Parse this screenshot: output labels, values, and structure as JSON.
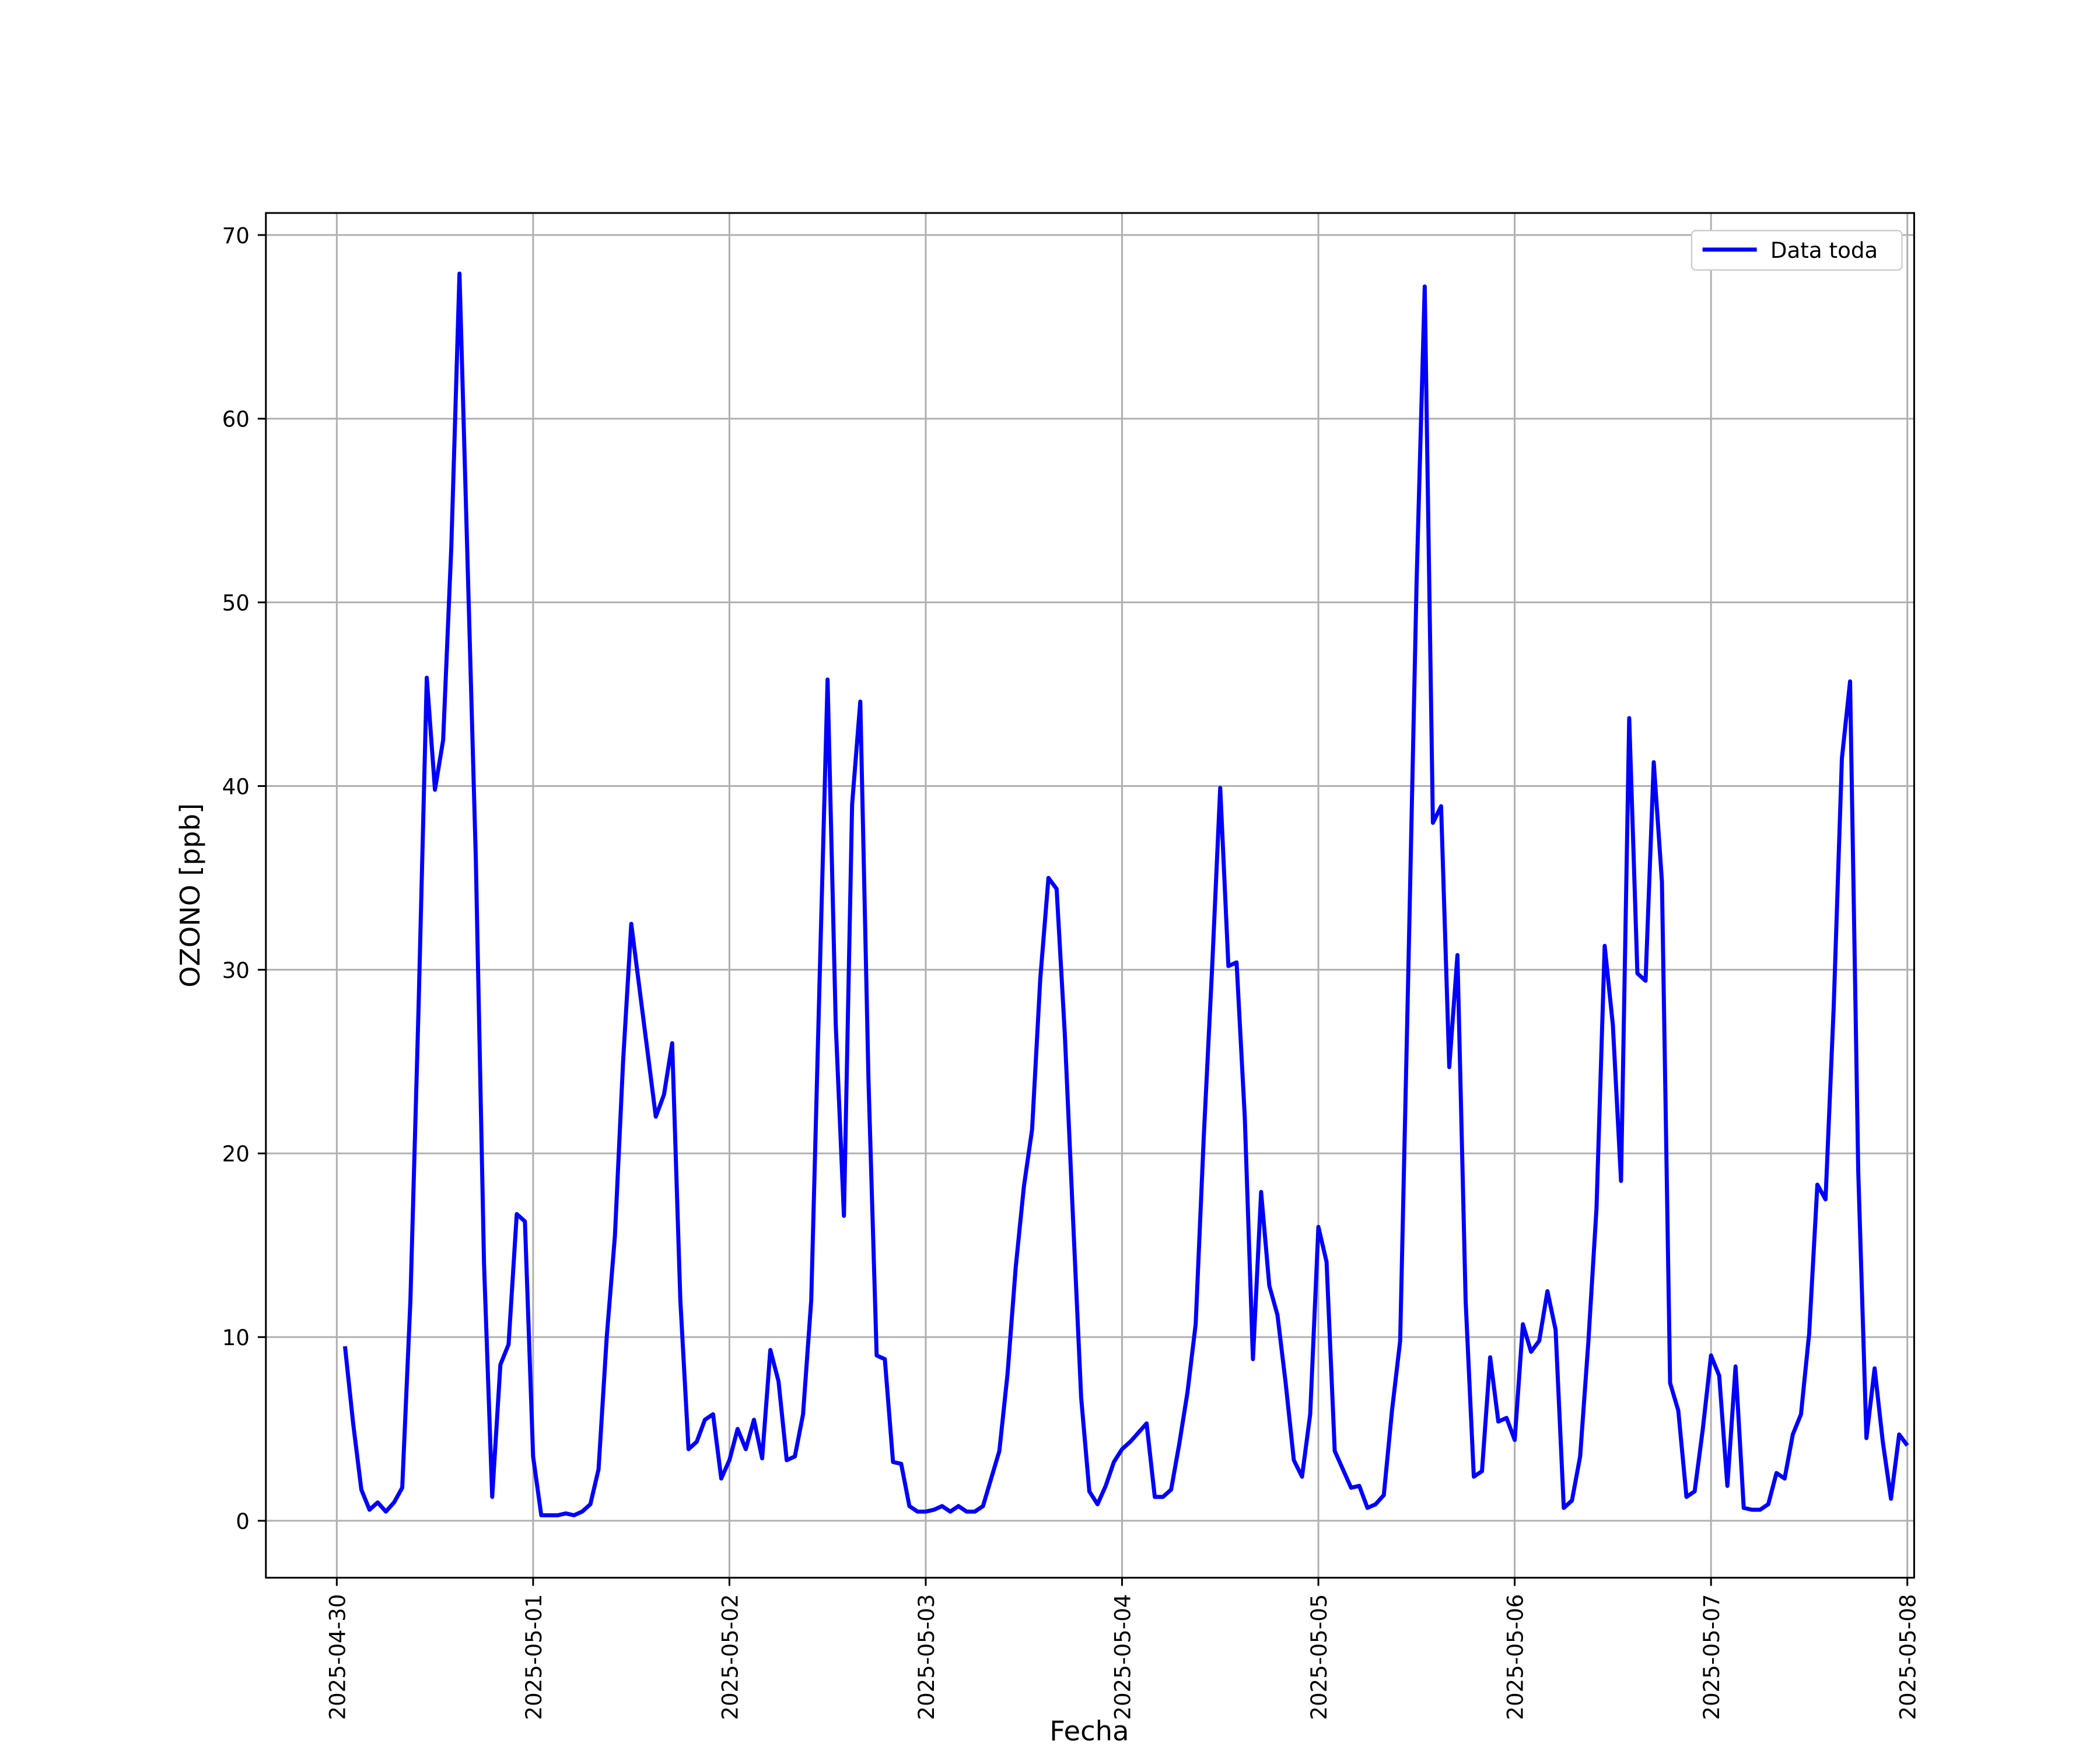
{
  "chart_data": {
    "type": "line",
    "x_label": "Fecha",
    "y_label": "OZONO [ppb]",
    "x": [
      "2025-04-30T01:00",
      "2025-04-30T02:00",
      "2025-04-30T03:00",
      "2025-04-30T04:00",
      "2025-04-30T05:00",
      "2025-04-30T06:00",
      "2025-04-30T07:00",
      "2025-04-30T08:00",
      "2025-04-30T09:00",
      "2025-04-30T10:00",
      "2025-04-30T11:00",
      "2025-04-30T12:00",
      "2025-04-30T13:00",
      "2025-04-30T14:00",
      "2025-04-30T15:00",
      "2025-04-30T16:00",
      "2025-04-30T17:00",
      "2025-04-30T18:00",
      "2025-04-30T19:00",
      "2025-04-30T20:00",
      "2025-04-30T21:00",
      "2025-04-30T22:00",
      "2025-04-30T23:00",
      "2025-05-01T00:00",
      "2025-05-01T01:00",
      "2025-05-01T02:00",
      "2025-05-01T03:00",
      "2025-05-01T04:00",
      "2025-05-01T05:00",
      "2025-05-01T06:00",
      "2025-05-01T07:00",
      "2025-05-01T08:00",
      "2025-05-01T09:00",
      "2025-05-01T10:00",
      "2025-05-01T11:00",
      "2025-05-01T12:00",
      "2025-05-01T13:00",
      "2025-05-01T14:00",
      "2025-05-01T15:00",
      "2025-05-01T16:00",
      "2025-05-01T17:00",
      "2025-05-01T18:00",
      "2025-05-01T19:00",
      "2025-05-01T20:00",
      "2025-05-01T21:00",
      "2025-05-01T22:00",
      "2025-05-01T23:00",
      "2025-05-02T00:00",
      "2025-05-02T01:00",
      "2025-05-02T02:00",
      "2025-05-02T03:00",
      "2025-05-02T04:00",
      "2025-05-02T05:00",
      "2025-05-02T06:00",
      "2025-05-02T07:00",
      "2025-05-02T08:00",
      "2025-05-02T09:00",
      "2025-05-02T10:00",
      "2025-05-02T11:00",
      "2025-05-02T12:00",
      "2025-05-02T13:00",
      "2025-05-02T14:00",
      "2025-05-02T15:00",
      "2025-05-02T16:00",
      "2025-05-02T17:00",
      "2025-05-02T18:00",
      "2025-05-02T19:00",
      "2025-05-02T20:00",
      "2025-05-02T21:00",
      "2025-05-02T22:00",
      "2025-05-02T23:00",
      "2025-05-03T00:00",
      "2025-05-03T01:00",
      "2025-05-03T02:00",
      "2025-05-03T03:00",
      "2025-05-03T04:00",
      "2025-05-03T05:00",
      "2025-05-03T06:00",
      "2025-05-03T07:00",
      "2025-05-03T08:00",
      "2025-05-03T09:00",
      "2025-05-03T10:00",
      "2025-05-03T11:00",
      "2025-05-03T12:00",
      "2025-05-03T13:00",
      "2025-05-03T14:00",
      "2025-05-03T15:00",
      "2025-05-03T16:00",
      "2025-05-03T17:00",
      "2025-05-03T18:00",
      "2025-05-03T19:00",
      "2025-05-03T20:00",
      "2025-05-03T21:00",
      "2025-05-03T22:00",
      "2025-05-03T23:00",
      "2025-05-04T00:00",
      "2025-05-04T01:00",
      "2025-05-04T02:00",
      "2025-05-04T03:00",
      "2025-05-04T04:00",
      "2025-05-04T05:00",
      "2025-05-04T06:00",
      "2025-05-04T07:00",
      "2025-05-04T08:00",
      "2025-05-04T09:00",
      "2025-05-04T10:00",
      "2025-05-04T11:00",
      "2025-05-04T12:00",
      "2025-05-04T13:00",
      "2025-05-04T14:00",
      "2025-05-04T15:00",
      "2025-05-04T16:00",
      "2025-05-04T17:00",
      "2025-05-04T18:00",
      "2025-05-04T19:00",
      "2025-05-04T20:00",
      "2025-05-04T21:00",
      "2025-05-04T22:00",
      "2025-05-04T23:00",
      "2025-05-05T00:00",
      "2025-05-05T01:00",
      "2025-05-05T02:00",
      "2025-05-05T03:00",
      "2025-05-05T04:00",
      "2025-05-05T05:00",
      "2025-05-05T06:00",
      "2025-05-05T07:00",
      "2025-05-05T08:00",
      "2025-05-05T09:00",
      "2025-05-05T10:00",
      "2025-05-05T11:00",
      "2025-05-05T12:00",
      "2025-05-05T13:00",
      "2025-05-05T14:00",
      "2025-05-05T15:00",
      "2025-05-05T16:00",
      "2025-05-05T17:00",
      "2025-05-05T18:00",
      "2025-05-05T19:00",
      "2025-05-05T20:00",
      "2025-05-05T21:00",
      "2025-05-05T22:00",
      "2025-05-05T23:00",
      "2025-05-06T00:00",
      "2025-05-06T01:00",
      "2025-05-06T02:00",
      "2025-05-06T03:00",
      "2025-05-06T04:00",
      "2025-05-06T05:00",
      "2025-05-06T06:00",
      "2025-05-06T07:00",
      "2025-05-06T08:00",
      "2025-05-06T09:00",
      "2025-05-06T10:00",
      "2025-05-06T11:00",
      "2025-05-06T12:00",
      "2025-05-06T13:00",
      "2025-05-06T14:00",
      "2025-05-06T15:00",
      "2025-05-06T16:00",
      "2025-05-06T17:00",
      "2025-05-06T18:00",
      "2025-05-06T19:00",
      "2025-05-06T20:00",
      "2025-05-06T21:00",
      "2025-05-06T22:00",
      "2025-05-06T23:00",
      "2025-05-07T00:00",
      "2025-05-07T01:00",
      "2025-05-07T02:00",
      "2025-05-07T03:00",
      "2025-05-07T04:00",
      "2025-05-07T05:00",
      "2025-05-07T06:00",
      "2025-05-07T07:00",
      "2025-05-07T08:00",
      "2025-05-07T09:00",
      "2025-05-07T10:00",
      "2025-05-07T11:00",
      "2025-05-07T12:00",
      "2025-05-07T13:00",
      "2025-05-07T14:00",
      "2025-05-07T15:00",
      "2025-05-07T16:00",
      "2025-05-07T17:00",
      "2025-05-07T18:00",
      "2025-05-07T19:00",
      "2025-05-07T20:00",
      "2025-05-07T21:00",
      "2025-05-07T22:00",
      "2025-05-07T23:00",
      "2025-05-08T00:00"
    ],
    "series": [
      {
        "name": "Data toda",
        "color": "#0000ff",
        "values": [
          9.5,
          5.3,
          1.7,
          0.6,
          1.0,
          0.5,
          1.0,
          1.8,
          12.0,
          28.0,
          45.9,
          39.8,
          42.5,
          53.0,
          67.9,
          52.0,
          36.0,
          14.0,
          1.3,
          8.5,
          9.6,
          16.7,
          16.3,
          3.5,
          0.3,
          0.3,
          0.3,
          0.4,
          0.3,
          0.5,
          0.9,
          2.8,
          10.0,
          15.5,
          25.0,
          32.5,
          29.0,
          25.5,
          22.0,
          23.2,
          26.0,
          12.0,
          3.9,
          4.3,
          5.5,
          5.8,
          2.3,
          3.3,
          5.0,
          3.9,
          5.5,
          3.4,
          9.3,
          7.6,
          3.3,
          3.5,
          5.8,
          12.0,
          29.0,
          45.8,
          27.0,
          16.6,
          39.0,
          44.6,
          24.0,
          9.0,
          8.8,
          3.2,
          3.1,
          0.8,
          0.5,
          0.5,
          0.6,
          0.8,
          0.5,
          0.8,
          0.5,
          0.5,
          0.8,
          2.3,
          3.8,
          8.0,
          13.8,
          18.2,
          21.3,
          29.5,
          35.0,
          34.4,
          26.5,
          16.5,
          6.7,
          1.6,
          0.9,
          1.9,
          3.2,
          3.9,
          4.3,
          4.8,
          5.3,
          1.3,
          1.3,
          1.7,
          4.2,
          7.0,
          10.7,
          21.0,
          30.0,
          39.9,
          30.2,
          30.4,
          22.0,
          8.8,
          17.9,
          12.8,
          11.2,
          7.5,
          3.3,
          2.4,
          5.8,
          16.0,
          14.1,
          3.8,
          2.8,
          1.8,
          1.9,
          0.7,
          0.9,
          1.4,
          6.0,
          9.8,
          30.0,
          51.0,
          67.2,
          38.0,
          38.9,
          24.7,
          30.8,
          12.0,
          2.4,
          2.7,
          8.9,
          5.4,
          5.6,
          4.4,
          10.7,
          9.2,
          9.8,
          12.5,
          10.4,
          0.7,
          1.1,
          3.5,
          9.7,
          17.0,
          31.3,
          27.0,
          18.5,
          43.7,
          29.8,
          29.4,
          41.3,
          34.8,
          7.5,
          6.0,
          1.3,
          1.6,
          5.0,
          9.0,
          7.9,
          1.9,
          8.4,
          0.7,
          0.6,
          0.6,
          0.9,
          2.6,
          2.3,
          4.7,
          5.8,
          10.2,
          18.3,
          17.5,
          28.0,
          41.5,
          45.7,
          19.0,
          4.5,
          8.3,
          4.3,
          1.2,
          4.7,
          4.1
        ]
      }
    ],
    "xlim": [
      "2025-04-29T15:20",
      "2025-05-08T00:50"
    ],
    "xticks": [
      "2025-04-30",
      "2025-05-01",
      "2025-05-02",
      "2025-05-03",
      "2025-05-04",
      "2025-05-05",
      "2025-05-06",
      "2025-05-07",
      "2025-05-08"
    ],
    "ylim": [
      -3.1,
      71.2
    ],
    "yticks": [
      0,
      10,
      20,
      30,
      40,
      50,
      60,
      70
    ],
    "grid": true,
    "legend": "upper right"
  }
}
